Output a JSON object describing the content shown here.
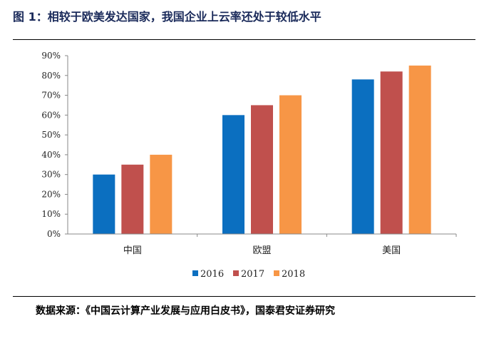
{
  "header": {
    "title": "图 1：相较于欧美发达国家，我国企业上云率还处于较低水平"
  },
  "footer": {
    "source": "数据来源：《中国云计算产业发展与应用白皮书》，国泰君安证券研究"
  },
  "chart_data": {
    "type": "bar",
    "categories": [
      "中国",
      "欧盟",
      "美国"
    ],
    "series": [
      {
        "name": "2016",
        "values": [
          30,
          60,
          78
        ],
        "color": "#0b6fc0"
      },
      {
        "name": "2017",
        "values": [
          35,
          65,
          82
        ],
        "color": "#c0504d"
      },
      {
        "name": "2018",
        "values": [
          40,
          70,
          85
        ],
        "color": "#f79646"
      }
    ],
    "yticks": [
      "0%",
      "10%",
      "20%",
      "30%",
      "40%",
      "50%",
      "60%",
      "70%",
      "80%",
      "90%"
    ],
    "ylim": [
      0,
      90
    ],
    "ystep": 10,
    "grid": false,
    "legend_position": "bottom-center"
  }
}
